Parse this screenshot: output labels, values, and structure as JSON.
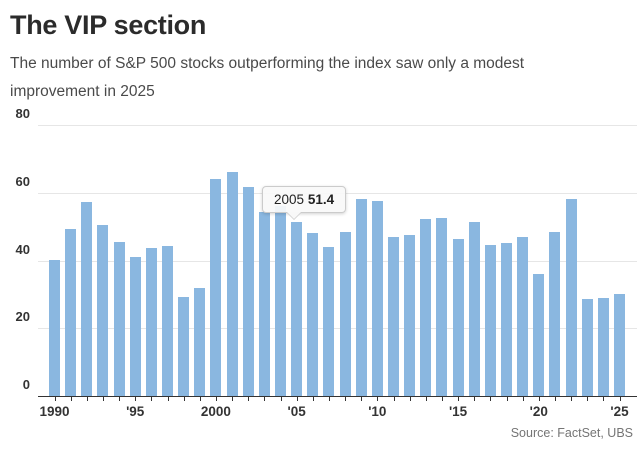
{
  "header": {
    "title": "The VIP section",
    "subtitle": "The number of S&P 500 stocks outperforming the index saw only a modest improvement in 2025"
  },
  "tooltip": {
    "label": "2005",
    "value": "51.4"
  },
  "footer": {
    "source": "Source: FactSet, UBS"
  },
  "chart_data": {
    "type": "bar",
    "title": "The VIP section",
    "subtitle": "The number of S&P 500 stocks outperforming the index saw only a modest improvement in 2025",
    "x": [
      1990,
      1991,
      1992,
      1993,
      1994,
      1995,
      1996,
      1997,
      1998,
      1999,
      2000,
      2001,
      2002,
      2003,
      2004,
      2005,
      2006,
      2007,
      2008,
      2009,
      2010,
      2011,
      2012,
      2013,
      2014,
      2015,
      2016,
      2017,
      2018,
      2019,
      2020,
      2021,
      2022,
      2023,
      2024,
      2025
    ],
    "values": [
      40.2,
      49.2,
      57.4,
      50.6,
      45.6,
      41.1,
      43.6,
      44.4,
      29.3,
      31.8,
      64.1,
      66.2,
      61.8,
      54.4,
      56.1,
      51.4,
      48.2,
      43.9,
      48.5,
      58.1,
      57.6,
      46.8,
      47.5,
      52.2,
      52.6,
      46.3,
      51.5,
      44.6,
      45.3,
      47.0,
      36.0,
      48.3,
      58.3,
      28.7,
      29.0,
      30.1
    ],
    "ylim": [
      0,
      80
    ],
    "yticks": [
      0,
      20,
      40,
      60,
      80
    ],
    "xtick_label_positions": [
      0,
      5,
      10,
      15,
      20,
      25,
      30,
      35
    ],
    "xtick_labels": [
      "1990",
      "'95",
      "2000",
      "'05",
      "'10",
      "'15",
      "'20",
      "'25"
    ],
    "grid": "horizontal",
    "legend": "none",
    "bar_color": "#8ab7e0",
    "grid_color": "#e6e6e6",
    "axis_color": "#333333",
    "highlighted_point": {
      "x": 2005,
      "value": 51.4
    },
    "source": "Source: FactSet, UBS"
  }
}
